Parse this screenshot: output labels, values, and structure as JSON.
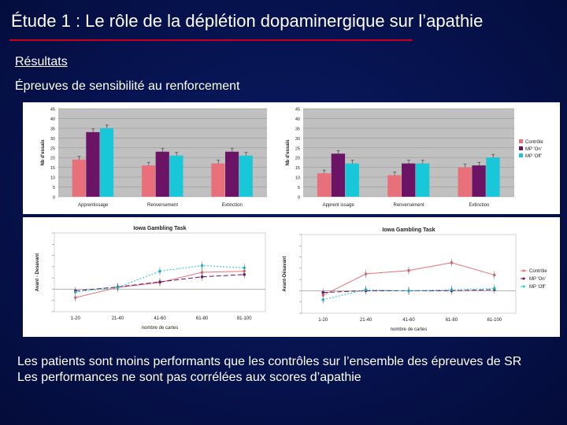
{
  "slide": {
    "title": "Étude 1 : Le rôle de la déplétion dopaminergique sur l’apathie",
    "subtitle": "Résultats",
    "section": "Épreuves de sensibilité au renforcement",
    "conclusion_line1": "Les patients sont moins performants que les contrôles sur l’ensemble des épreuves de SR",
    "conclusion_line2": "Les performances ne sont pas corrélées aux scores d’apathie"
  },
  "colors": {
    "accent_rule": "#c8001e",
    "control": "#e8707a",
    "mp_on": "#6b1466",
    "mp_off": "#18c8d8",
    "chart_bg_grey": "#c0c0c0"
  },
  "chart_data": [
    {
      "type": "bar",
      "ylabel": "Nb d'essais",
      "ylim": [
        0,
        45
      ],
      "yticks": [
        "0",
        "5",
        "10",
        "15",
        "20",
        "25",
        "30",
        "35",
        "40",
        "45"
      ],
      "categories": [
        "Apprentissage",
        "Renversement",
        "Extinction"
      ],
      "series": [
        {
          "values": [
            19,
            16,
            17
          ]
        },
        {
          "values": [
            33,
            23,
            23
          ]
        },
        {
          "values": [
            35,
            21,
            21
          ]
        }
      ]
    },
    {
      "type": "bar",
      "ylabel": "Nb d'essais",
      "ylim": [
        0,
        45
      ],
      "yticks": [
        "0",
        "5",
        "10",
        "15",
        "20",
        "25",
        "30",
        "35",
        "40",
        "45"
      ],
      "categories": [
        "Apprent issage",
        "Renversement",
        "Extinction"
      ],
      "legend": [
        "Contrôle",
        "MP 'On'",
        "MP 'Off'"
      ],
      "legend_position": "right",
      "series": [
        {
          "name": "Contrôle",
          "values": [
            12,
            11,
            15
          ]
        },
        {
          "name": "MP 'On'",
          "values": [
            22,
            17,
            16
          ]
        },
        {
          "name": "MP 'Off'",
          "values": [
            17,
            17,
            20
          ]
        }
      ]
    },
    {
      "type": "line",
      "title": "Iowa Gambling Task",
      "xlabel": "nombre de cartes",
      "ylabel": "Avant - Desavant",
      "ylim": [
        -4,
        10
      ],
      "x": [
        "1-20",
        "21-40",
        "41-60",
        "61-80",
        "81-100"
      ],
      "series": [
        {
          "values": [
            -1.5,
            0.3,
            1.2,
            3.0,
            3.2
          ]
        },
        {
          "values": [
            -0.3,
            0.4,
            1.3,
            2.2,
            2.6
          ]
        },
        {
          "values": [
            -0.5,
            0.3,
            3.2,
            4.2,
            3.8
          ]
        }
      ]
    },
    {
      "type": "line",
      "title": "Iowa Gambling Task",
      "xlabel": "nombre de cartes",
      "ylabel": "Avant-Désavant",
      "ylim": [
        -4,
        10
      ],
      "x": [
        "1-20",
        "21-40",
        "41-60",
        "61-80",
        "81-100"
      ],
      "legend": [
        "Contrôle",
        "MP 'On'",
        "MP 'Off'"
      ],
      "legend_position": "right",
      "series": [
        {
          "name": "Contrôle",
          "values": [
            -0.8,
            3.0,
            3.6,
            5.0,
            2.8
          ]
        },
        {
          "name": "MP 'On'",
          "values": [
            -0.3,
            0.0,
            0.0,
            0.0,
            0.2
          ]
        },
        {
          "name": "MP 'Off'",
          "values": [
            -1.6,
            0.2,
            0.0,
            0.2,
            0.4
          ]
        }
      ]
    }
  ]
}
